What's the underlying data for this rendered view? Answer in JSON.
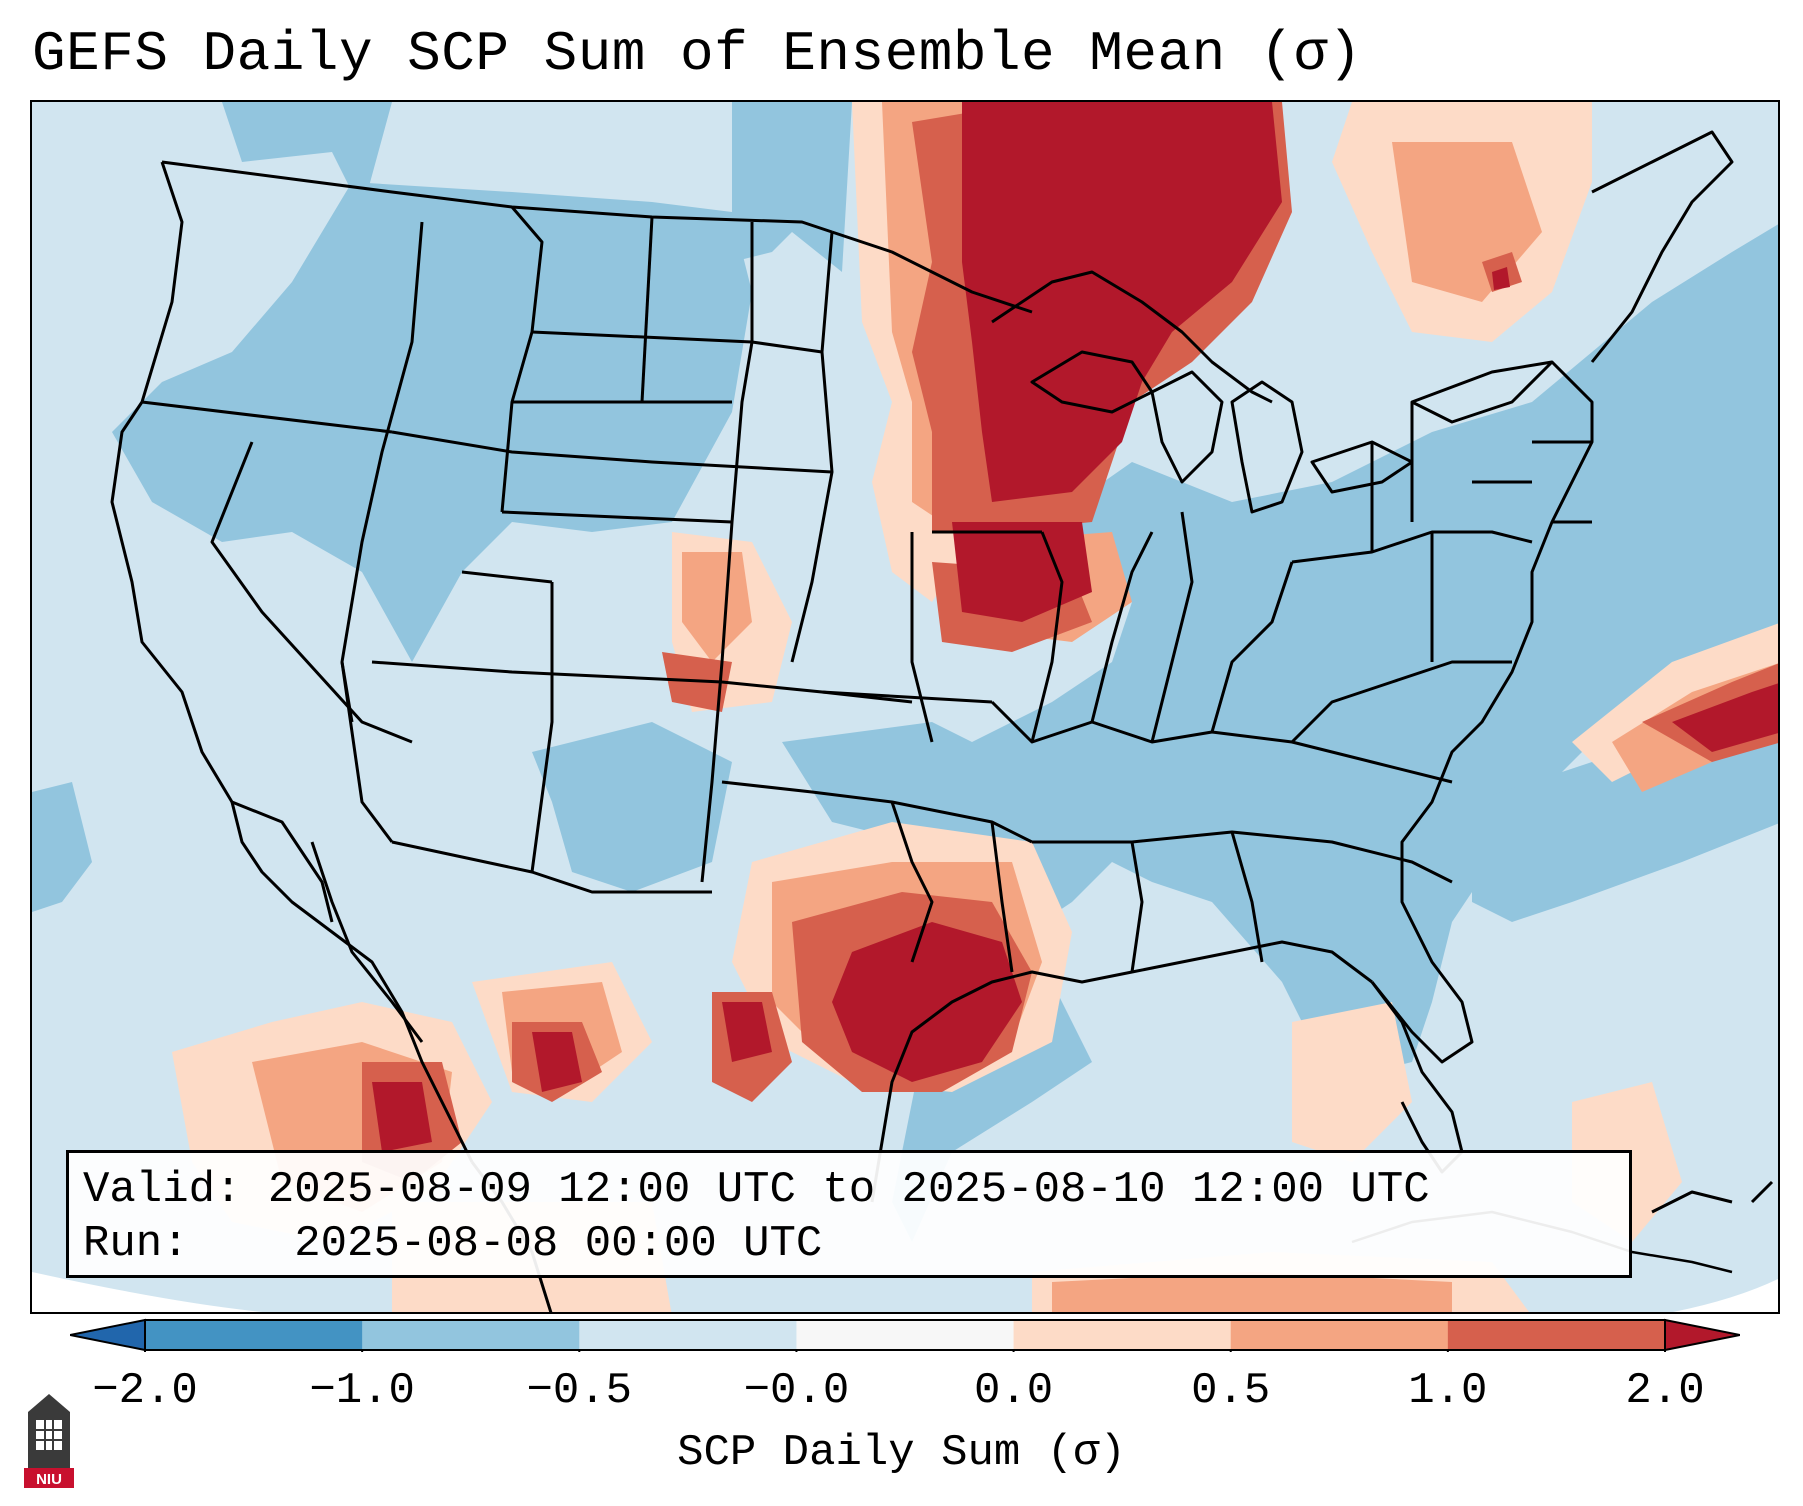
{
  "title": "GEFS Daily SCP Sum of Ensemble Mean (σ)",
  "info": {
    "valid_label": "Valid:",
    "valid_value": "2025-08-09 12:00 UTC to 2025-08-10 12:00 UTC",
    "run_label": "Run:",
    "run_value": "2025-08-08 00:00 UTC"
  },
  "colorbar": {
    "label": "SCP Daily Sum (σ)",
    "ticks": [
      "−2.0",
      "−1.0",
      "−0.5",
      "−0.0",
      "0.0",
      "0.5",
      "1.0",
      "2.0"
    ],
    "bins": [
      {
        "color": "#4393c3"
      },
      {
        "color": "#92c5de"
      },
      {
        "color": "#d1e5f0"
      },
      {
        "color": "#f7f7f7"
      },
      {
        "color": "#fddbc7"
      },
      {
        "color": "#f4a582"
      },
      {
        "color": "#d6604d"
      }
    ],
    "under_color": "#2166ac",
    "over_color": "#b2182b"
  },
  "colors": {
    "strong_positive": "#b2182b",
    "positive": "#d6604d",
    "weak_positive": "#f4a582",
    "slight_positive": "#fddbc7",
    "neutral_light": "#d1e5f0",
    "negative": "#92c5de"
  },
  "logo": {
    "text": "NIU"
  }
}
